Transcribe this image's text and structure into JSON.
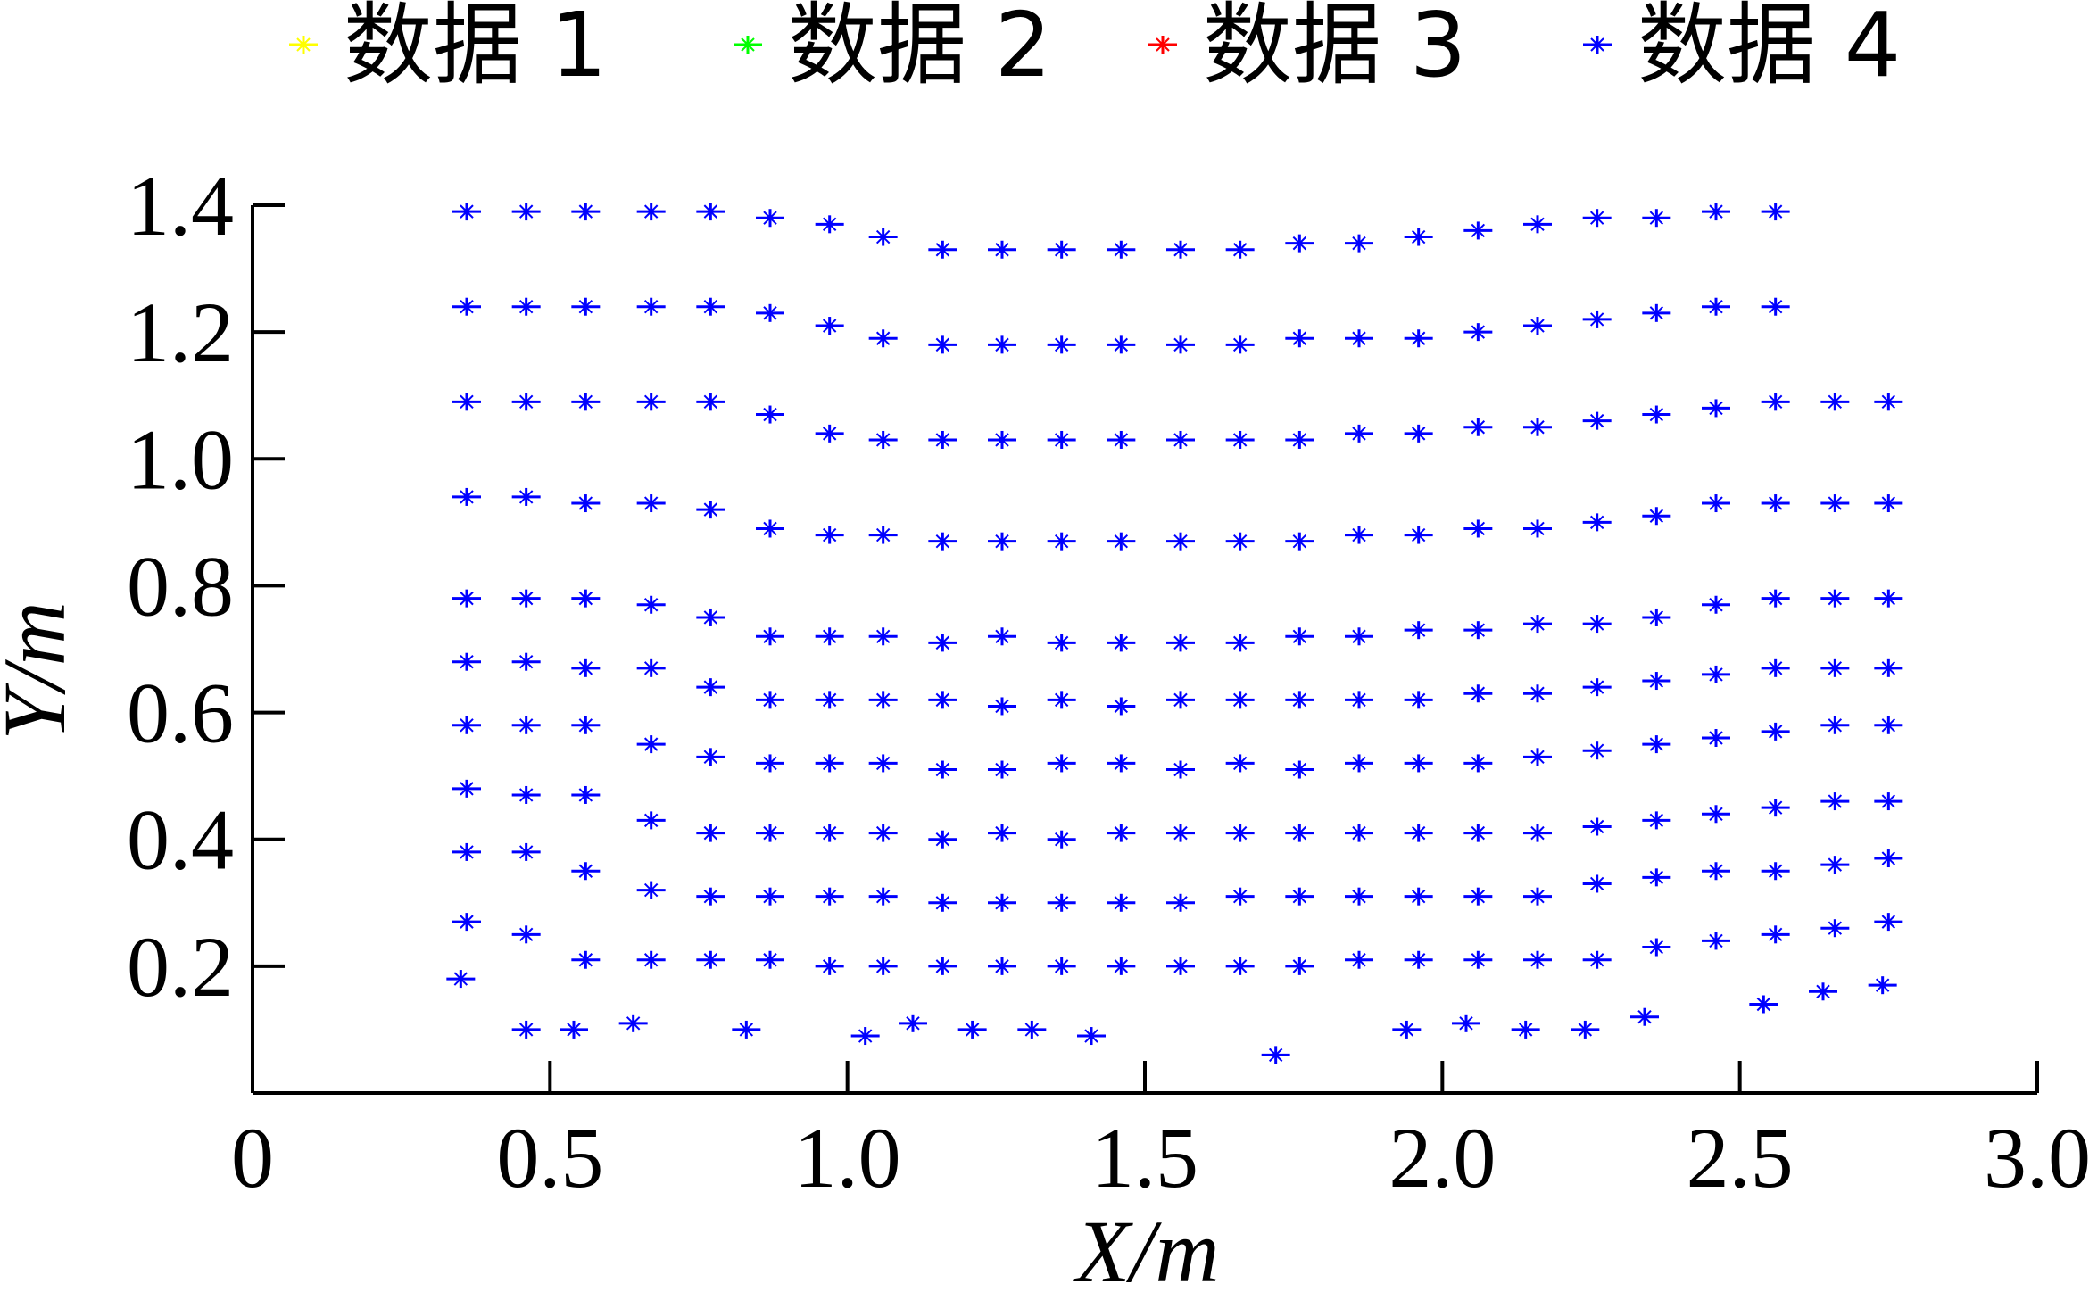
{
  "chart_data": {
    "type": "scatter",
    "xlabel": "X/m",
    "ylabel": "Y/m",
    "xlim": [
      0,
      3.0
    ],
    "ylim": [
      0,
      1.4
    ],
    "x_ticks": [
      "0",
      "0.5",
      "1.0",
      "1.5",
      "2.0",
      "2.5",
      "3.0"
    ],
    "x_tick_values": [
      0,
      0.5,
      1.0,
      1.5,
      2.0,
      2.5,
      3.0
    ],
    "y_ticks": [
      "0.2",
      "0.4",
      "0.6",
      "0.8",
      "1.0",
      "1.2",
      "1.4"
    ],
    "y_tick_values": [
      0.2,
      0.4,
      0.6,
      0.8,
      1.0,
      1.2,
      1.4
    ],
    "grid": false,
    "legend_position": "top",
    "marker": "asterisk",
    "series": [
      {
        "name": "数据 1",
        "color": "#ffff00",
        "points": []
      },
      {
        "name": "数据 2",
        "color": "#00ff00",
        "points": []
      },
      {
        "name": "数据 3",
        "color": "#ff0000",
        "points": []
      },
      {
        "name": "数据 4",
        "color": "#0000ff",
        "points": [
          [
            0.36,
            1.39
          ],
          [
            0.46,
            1.39
          ],
          [
            0.56,
            1.39
          ],
          [
            0.67,
            1.39
          ],
          [
            0.77,
            1.39
          ],
          [
            0.87,
            1.38
          ],
          [
            0.97,
            1.37
          ],
          [
            1.06,
            1.35
          ],
          [
            1.16,
            1.33
          ],
          [
            1.26,
            1.33
          ],
          [
            1.36,
            1.33
          ],
          [
            1.46,
            1.33
          ],
          [
            1.56,
            1.33
          ],
          [
            1.66,
            1.33
          ],
          [
            1.76,
            1.34
          ],
          [
            1.86,
            1.34
          ],
          [
            1.96,
            1.35
          ],
          [
            2.06,
            1.36
          ],
          [
            2.16,
            1.37
          ],
          [
            2.26,
            1.38
          ],
          [
            2.36,
            1.38
          ],
          [
            2.46,
            1.39
          ],
          [
            2.56,
            1.39
          ],
          [
            0.36,
            1.24
          ],
          [
            0.46,
            1.24
          ],
          [
            0.56,
            1.24
          ],
          [
            0.67,
            1.24
          ],
          [
            0.77,
            1.24
          ],
          [
            0.87,
            1.23
          ],
          [
            0.97,
            1.21
          ],
          [
            1.06,
            1.19
          ],
          [
            1.16,
            1.18
          ],
          [
            1.26,
            1.18
          ],
          [
            1.36,
            1.18
          ],
          [
            1.46,
            1.18
          ],
          [
            1.56,
            1.18
          ],
          [
            1.66,
            1.18
          ],
          [
            1.76,
            1.19
          ],
          [
            1.86,
            1.19
          ],
          [
            1.96,
            1.19
          ],
          [
            2.06,
            1.2
          ],
          [
            2.16,
            1.21
          ],
          [
            2.26,
            1.22
          ],
          [
            2.36,
            1.23
          ],
          [
            2.46,
            1.24
          ],
          [
            2.56,
            1.24
          ],
          [
            0.36,
            1.09
          ],
          [
            0.46,
            1.09
          ],
          [
            0.56,
            1.09
          ],
          [
            0.67,
            1.09
          ],
          [
            0.77,
            1.09
          ],
          [
            0.87,
            1.07
          ],
          [
            0.97,
            1.04
          ],
          [
            1.06,
            1.03
          ],
          [
            1.16,
            1.03
          ],
          [
            1.26,
            1.03
          ],
          [
            1.36,
            1.03
          ],
          [
            1.46,
            1.03
          ],
          [
            1.56,
            1.03
          ],
          [
            1.66,
            1.03
          ],
          [
            1.76,
            1.03
          ],
          [
            1.86,
            1.04
          ],
          [
            1.96,
            1.04
          ],
          [
            2.06,
            1.05
          ],
          [
            2.16,
            1.05
          ],
          [
            2.26,
            1.06
          ],
          [
            2.36,
            1.07
          ],
          [
            2.46,
            1.08
          ],
          [
            2.56,
            1.09
          ],
          [
            2.66,
            1.09
          ],
          [
            2.75,
            1.09
          ],
          [
            0.36,
            0.94
          ],
          [
            0.46,
            0.94
          ],
          [
            0.56,
            0.93
          ],
          [
            0.67,
            0.93
          ],
          [
            0.77,
            0.92
          ],
          [
            0.87,
            0.89
          ],
          [
            0.97,
            0.88
          ],
          [
            1.06,
            0.88
          ],
          [
            1.16,
            0.87
          ],
          [
            1.26,
            0.87
          ],
          [
            1.36,
            0.87
          ],
          [
            1.46,
            0.87
          ],
          [
            1.56,
            0.87
          ],
          [
            1.66,
            0.87
          ],
          [
            1.76,
            0.87
          ],
          [
            1.86,
            0.88
          ],
          [
            1.96,
            0.88
          ],
          [
            2.06,
            0.89
          ],
          [
            2.16,
            0.89
          ],
          [
            2.26,
            0.9
          ],
          [
            2.36,
            0.91
          ],
          [
            2.46,
            0.93
          ],
          [
            2.56,
            0.93
          ],
          [
            2.66,
            0.93
          ],
          [
            2.75,
            0.93
          ],
          [
            0.36,
            0.78
          ],
          [
            0.46,
            0.78
          ],
          [
            0.56,
            0.78
          ],
          [
            0.67,
            0.77
          ],
          [
            0.77,
            0.75
          ],
          [
            0.87,
            0.72
          ],
          [
            0.97,
            0.72
          ],
          [
            1.06,
            0.72
          ],
          [
            1.16,
            0.71
          ],
          [
            1.26,
            0.72
          ],
          [
            1.36,
            0.71
          ],
          [
            1.46,
            0.71
          ],
          [
            1.56,
            0.71
          ],
          [
            1.66,
            0.71
          ],
          [
            1.76,
            0.72
          ],
          [
            1.86,
            0.72
          ],
          [
            1.96,
            0.73
          ],
          [
            2.06,
            0.73
          ],
          [
            2.16,
            0.74
          ],
          [
            2.26,
            0.74
          ],
          [
            2.36,
            0.75
          ],
          [
            2.46,
            0.77
          ],
          [
            2.56,
            0.78
          ],
          [
            2.66,
            0.78
          ],
          [
            2.75,
            0.78
          ],
          [
            0.36,
            0.68
          ],
          [
            0.46,
            0.68
          ],
          [
            0.56,
            0.67
          ],
          [
            0.67,
            0.67
          ],
          [
            0.77,
            0.64
          ],
          [
            0.87,
            0.62
          ],
          [
            0.97,
            0.62
          ],
          [
            1.06,
            0.62
          ],
          [
            1.16,
            0.62
          ],
          [
            1.26,
            0.61
          ],
          [
            1.36,
            0.62
          ],
          [
            1.46,
            0.61
          ],
          [
            1.56,
            0.62
          ],
          [
            1.66,
            0.62
          ],
          [
            1.76,
            0.62
          ],
          [
            1.86,
            0.62
          ],
          [
            1.96,
            0.62
          ],
          [
            2.06,
            0.63
          ],
          [
            2.16,
            0.63
          ],
          [
            2.26,
            0.64
          ],
          [
            2.36,
            0.65
          ],
          [
            2.46,
            0.66
          ],
          [
            2.56,
            0.67
          ],
          [
            2.66,
            0.67
          ],
          [
            2.75,
            0.67
          ],
          [
            0.36,
            0.58
          ],
          [
            0.46,
            0.58
          ],
          [
            0.56,
            0.58
          ],
          [
            0.67,
            0.55
          ],
          [
            0.77,
            0.53
          ],
          [
            0.87,
            0.52
          ],
          [
            0.97,
            0.52
          ],
          [
            1.06,
            0.52
          ],
          [
            1.16,
            0.51
          ],
          [
            1.26,
            0.51
          ],
          [
            1.36,
            0.52
          ],
          [
            1.46,
            0.52
          ],
          [
            1.56,
            0.51
          ],
          [
            1.66,
            0.52
          ],
          [
            1.76,
            0.51
          ],
          [
            1.86,
            0.52
          ],
          [
            1.96,
            0.52
          ],
          [
            2.06,
            0.52
          ],
          [
            2.16,
            0.53
          ],
          [
            2.26,
            0.54
          ],
          [
            2.36,
            0.55
          ],
          [
            2.46,
            0.56
          ],
          [
            2.56,
            0.57
          ],
          [
            2.66,
            0.58
          ],
          [
            2.75,
            0.58
          ],
          [
            0.36,
            0.48
          ],
          [
            0.46,
            0.47
          ],
          [
            0.56,
            0.47
          ],
          [
            0.67,
            0.43
          ],
          [
            0.77,
            0.41
          ],
          [
            0.87,
            0.41
          ],
          [
            0.97,
            0.41
          ],
          [
            1.06,
            0.41
          ],
          [
            1.16,
            0.4
          ],
          [
            1.26,
            0.41
          ],
          [
            1.36,
            0.4
          ],
          [
            1.46,
            0.41
          ],
          [
            1.56,
            0.41
          ],
          [
            1.66,
            0.41
          ],
          [
            1.76,
            0.41
          ],
          [
            1.86,
            0.41
          ],
          [
            1.96,
            0.41
          ],
          [
            2.06,
            0.41
          ],
          [
            2.16,
            0.41
          ],
          [
            2.26,
            0.42
          ],
          [
            2.36,
            0.43
          ],
          [
            2.46,
            0.44
          ],
          [
            2.56,
            0.45
          ],
          [
            2.66,
            0.46
          ],
          [
            2.75,
            0.46
          ],
          [
            0.36,
            0.38
          ],
          [
            0.46,
            0.38
          ],
          [
            0.56,
            0.35
          ],
          [
            0.67,
            0.32
          ],
          [
            0.77,
            0.31
          ],
          [
            0.87,
            0.31
          ],
          [
            0.97,
            0.31
          ],
          [
            1.06,
            0.31
          ],
          [
            1.16,
            0.3
          ],
          [
            1.26,
            0.3
          ],
          [
            1.36,
            0.3
          ],
          [
            1.46,
            0.3
          ],
          [
            1.56,
            0.3
          ],
          [
            1.66,
            0.31
          ],
          [
            1.76,
            0.31
          ],
          [
            1.86,
            0.31
          ],
          [
            1.96,
            0.31
          ],
          [
            2.06,
            0.31
          ],
          [
            2.16,
            0.31
          ],
          [
            2.26,
            0.33
          ],
          [
            2.36,
            0.34
          ],
          [
            2.46,
            0.35
          ],
          [
            2.56,
            0.35
          ],
          [
            2.66,
            0.36
          ],
          [
            2.75,
            0.37
          ],
          [
            0.36,
            0.27
          ],
          [
            0.46,
            0.25
          ],
          [
            0.56,
            0.21
          ],
          [
            0.67,
            0.21
          ],
          [
            0.77,
            0.21
          ],
          [
            0.87,
            0.21
          ],
          [
            0.97,
            0.2
          ],
          [
            1.06,
            0.2
          ],
          [
            1.16,
            0.2
          ],
          [
            1.26,
            0.2
          ],
          [
            1.36,
            0.2
          ],
          [
            1.46,
            0.2
          ],
          [
            1.56,
            0.2
          ],
          [
            1.66,
            0.2
          ],
          [
            1.76,
            0.2
          ],
          [
            1.86,
            0.21
          ],
          [
            1.96,
            0.21
          ],
          [
            2.06,
            0.21
          ],
          [
            2.16,
            0.21
          ],
          [
            2.26,
            0.21
          ],
          [
            2.36,
            0.23
          ],
          [
            2.46,
            0.24
          ],
          [
            2.56,
            0.25
          ],
          [
            2.66,
            0.26
          ],
          [
            2.75,
            0.27
          ],
          [
            0.35,
            0.18
          ],
          [
            0.46,
            0.1
          ],
          [
            0.54,
            0.1
          ],
          [
            0.64,
            0.11
          ],
          [
            0.83,
            0.1
          ],
          [
            1.03,
            0.09
          ],
          [
            1.11,
            0.11
          ],
          [
            1.21,
            0.1
          ],
          [
            1.31,
            0.1
          ],
          [
            1.41,
            0.09
          ],
          [
            1.72,
            0.06
          ],
          [
            1.94,
            0.1
          ],
          [
            2.04,
            0.11
          ],
          [
            2.14,
            0.1
          ],
          [
            2.24,
            0.1
          ],
          [
            2.34,
            0.12
          ],
          [
            2.54,
            0.14
          ],
          [
            2.64,
            0.16
          ],
          [
            2.74,
            0.17
          ]
        ]
      }
    ]
  }
}
